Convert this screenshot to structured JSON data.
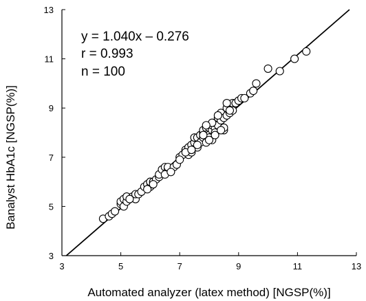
{
  "chart_data": {
    "type": "scatter",
    "title": "",
    "xlabel": "Automated analyzer (latex method) [NGSP(%)]",
    "ylabel": "Banalyst HbA1c [NGSP(%)]",
    "xlim": [
      3,
      13
    ],
    "ylim": [
      3,
      13
    ],
    "xticks": [
      "3",
      "5",
      "7",
      "9",
      "11",
      "13"
    ],
    "yticks": [
      "3",
      "5",
      "7",
      "9",
      "11",
      "13"
    ],
    "grid": false,
    "annotations": [
      "y = 1.040x – 0.276",
      "r = 0.993",
      "n = 100"
    ],
    "regression": {
      "slope": 1.04,
      "intercept": -0.276
    },
    "marker_color": "#000000",
    "line_color": "#000000",
    "x": [
      4.4,
      4.6,
      4.7,
      4.8,
      5.0,
      5.0,
      5.1,
      5.1,
      5.2,
      5.2,
      5.4,
      5.5,
      5.5,
      5.6,
      5.7,
      5.8,
      5.9,
      6.0,
      6.0,
      6.0,
      6.1,
      6.2,
      6.3,
      6.3,
      6.4,
      6.5,
      6.6,
      6.6,
      6.8,
      6.9,
      7.0,
      7.1,
      7.2,
      7.3,
      7.3,
      7.4,
      7.4,
      7.5,
      7.5,
      7.6,
      7.6,
      7.7,
      7.7,
      7.8,
      7.8,
      7.8,
      7.9,
      7.9,
      7.9,
      8.0,
      8.0,
      8.0,
      8.0,
      8.1,
      8.1,
      8.1,
      8.2,
      8.2,
      8.2,
      8.3,
      8.3,
      8.4,
      8.4,
      8.5,
      8.5,
      8.6,
      8.6,
      8.7,
      8.8,
      8.8,
      8.9,
      9.0,
      9.1,
      9.2,
      9.4,
      9.5,
      9.6,
      10.0,
      10.4,
      10.9,
      11.3,
      7.2,
      7.6,
      7.8,
      8.0,
      8.1,
      7.9,
      8.3,
      8.5,
      8.6,
      8.7,
      6.1,
      5.9,
      6.5,
      7.0,
      7.4,
      6.7,
      5.3,
      8.2,
      8.4
    ],
    "y": [
      4.5,
      4.6,
      4.7,
      4.8,
      5.1,
      5.2,
      5.0,
      5.3,
      5.2,
      5.4,
      5.4,
      5.3,
      5.5,
      5.5,
      5.6,
      5.8,
      5.9,
      5.8,
      6.0,
      6.0,
      6.0,
      6.1,
      6.2,
      6.3,
      6.5,
      6.6,
      6.5,
      6.6,
      6.6,
      6.7,
      7.0,
      7.1,
      7.3,
      7.1,
      7.4,
      7.2,
      7.5,
      7.6,
      7.8,
      7.4,
      7.8,
      7.6,
      7.9,
      8.0,
      7.8,
      8.1,
      7.6,
      7.9,
      8.2,
      8.0,
      7.9,
      8.2,
      7.8,
      8.1,
      8.3,
      7.7,
      8.2,
      8.0,
      8.4,
      8.3,
      8.6,
      8.5,
      8.8,
      8.6,
      8.1,
      9.0,
      8.7,
      8.8,
      9.2,
      8.9,
      9.2,
      9.3,
      9.4,
      9.4,
      9.6,
      9.7,
      10.0,
      10.6,
      10.5,
      11.0,
      11.3,
      7.2,
      7.5,
      7.9,
      7.7,
      8.4,
      8.3,
      8.7,
      8.2,
      9.2,
      8.9,
      5.9,
      5.7,
      6.3,
      6.9,
      7.3,
      6.4,
      5.3,
      7.9,
      8.1
    ]
  }
}
